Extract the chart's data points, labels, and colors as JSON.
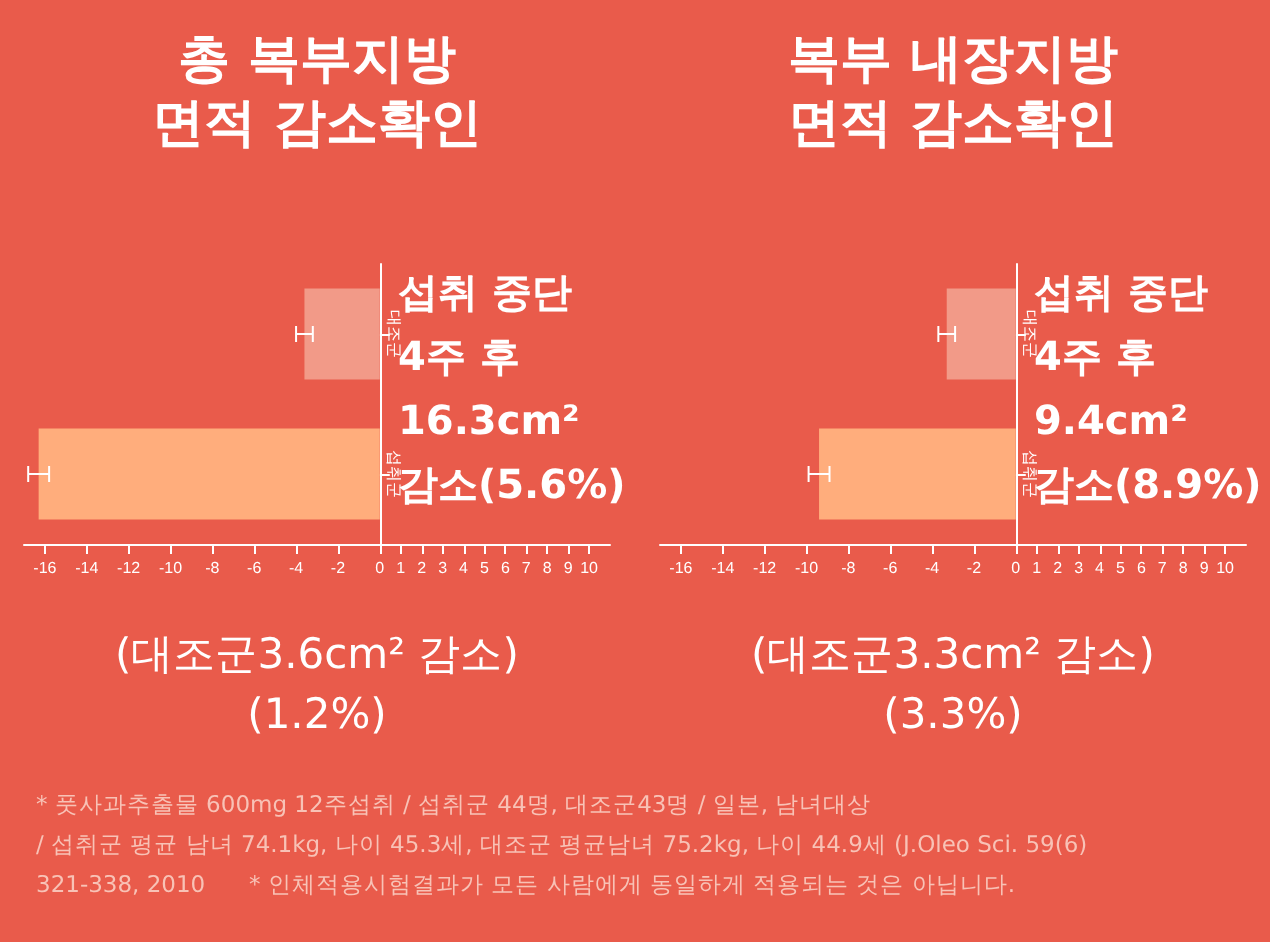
{
  "chart_data": [
    {
      "type": "bar",
      "orientation": "horizontal",
      "title": "총 복부지방\n면적 감소확인",
      "categories": [
        "대조군",
        "섭취군"
      ],
      "values": [
        -3.6,
        -16.3
      ],
      "errors": [
        0.4,
        0.5
      ],
      "colors": [
        "#f29a88",
        "#ffad7c"
      ],
      "xlim": [
        -17,
        11
      ],
      "xticks": [
        -16,
        -14,
        -12,
        -10,
        -8,
        -6,
        -4,
        -2,
        0,
        1,
        2,
        3,
        4,
        5,
        6,
        7,
        8,
        9,
        10
      ],
      "annotations": [
        "섭취 중단\n4주 후\n16.3cm²\n감소(5.6%)",
        "(대조군3.6cm² 감소)\n(1.2%)",
        "* 풋사과추출물 600mg 12주섭취 / 섭취군 44명, 대조군43명 / 일본, 남녀대상\n/ 섭취군 평균 남녀 74.1kg, 나이 45.3세, 대조군 평균남녀 75.2kg, 나이 44.9세 (J.Oleo Sci. 59(6)\n321-338, 2010      * 인체적용시험결과가 모든 사람에게 동일하게 적용되는 것은 아닙니다."
      ]
    },
    {
      "type": "bar",
      "orientation": "horizontal",
      "title": "복부 내장지방\n면적 감소확인",
      "categories": [
        "대조군",
        "섭취군"
      ],
      "values": [
        -3.3,
        -9.4
      ],
      "errors": [
        0.4,
        0.5
      ],
      "colors": [
        "#f29a88",
        "#ffad7c"
      ],
      "xlim": [
        -17,
        11
      ],
      "xticks": [
        -16,
        -14,
        -12,
        -10,
        -8,
        -6,
        -4,
        -2,
        0,
        1,
        2,
        3,
        4,
        5,
        6,
        7,
        8,
        9,
        10
      ],
      "annotations": [
        "섭취 중단\n4주 후\n9.4cm²\n감소(8.9%)",
        "(대조군3.3cm² 감소)\n(3.3%)"
      ]
    }
  ]
}
